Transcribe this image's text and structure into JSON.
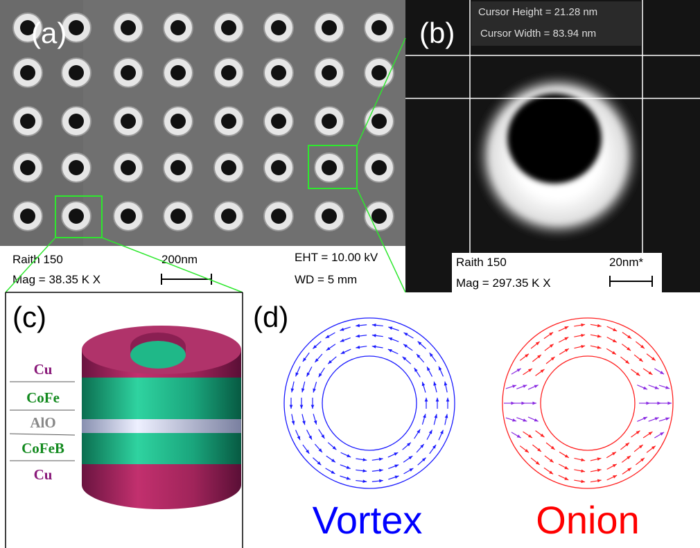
{
  "panel_a": {
    "label": "(a)",
    "instrument": "Raith 150",
    "magnification": "Mag =  38.35 K X",
    "scale_bar": "200nm",
    "eht": "EHT = 10.00 kV",
    "wd": "WD =    5 mm"
  },
  "panel_b": {
    "label": "(b)",
    "cursor_height": "Cursor Height = 21.28 nm",
    "cursor_width": "Cursor Width = 83.94 nm",
    "instrument": "Raith 150",
    "magnification": "Mag = 297.35 K X",
    "scale_bar": "20nm*"
  },
  "panel_c": {
    "label": "(c)",
    "layers": [
      "Cu",
      "CoFe",
      "AlO",
      "CoFeB",
      "Cu"
    ]
  },
  "panel_d": {
    "label": "(d)",
    "states": [
      "Vortex",
      "Onion"
    ]
  }
}
